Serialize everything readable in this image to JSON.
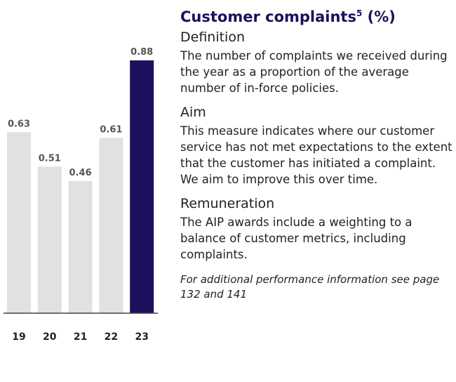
{
  "chart_data": {
    "type": "bar",
    "title": "Customer complaints",
    "title_note": "5",
    "title_unit": "(%)",
    "categories": [
      "19",
      "20",
      "21",
      "22",
      "23"
    ],
    "values": [
      0.63,
      0.51,
      0.46,
      0.61,
      0.88
    ],
    "colors": [
      "#e1e1e1",
      "#e1e1e1",
      "#e1e1e1",
      "#e1e1e1",
      "#1e0f5c"
    ]
  },
  "sections": [
    {
      "heading": "Definition",
      "body": "The number of complaints we received during the year as a proportion of the average number of in-force policies."
    },
    {
      "heading": "Aim",
      "body": "This measure indicates where our customer service has not met expectations to the extent that the customer has initiated a complaint. We aim to improve this over time."
    },
    {
      "heading": "Remuneration",
      "body": "The AIP awards include a weighting to a balance of customer metrics, including complaints."
    }
  ],
  "footnote": "For additional performance information see page 132 and 141"
}
